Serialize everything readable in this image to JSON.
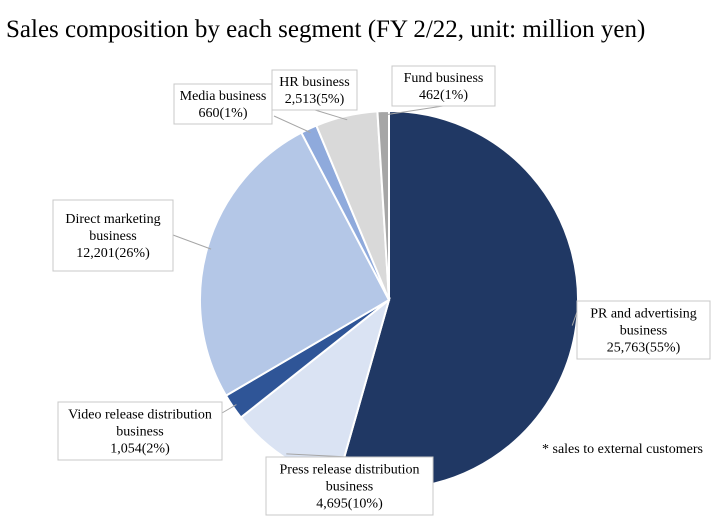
{
  "chart_data": {
    "type": "pie",
    "title": "Sales composition by each segment (FY 2/22, unit: million yen)",
    "note": "* sales to external customers",
    "start_angle_deg": 0,
    "direction": "clockwise",
    "slices": [
      {
        "label_lines": [
          "PR and advertising",
          "business",
          "25,763(55%)"
        ],
        "value": 25763,
        "percent": 55,
        "color": "#203864"
      },
      {
        "label_lines": [
          "Press release distribution",
          "business",
          "4,695(10%)"
        ],
        "value": 4695,
        "percent": 10,
        "color": "#dae3f3"
      },
      {
        "label_lines": [
          "Video release distribution",
          "business",
          "1,054(2%)"
        ],
        "value": 1054,
        "percent": 2,
        "color": "#2f5597"
      },
      {
        "label_lines": [
          "Direct marketing",
          "business",
          "12,201(26%)"
        ],
        "value": 12201,
        "percent": 26,
        "color": "#b4c7e7"
      },
      {
        "label_lines": [
          "Media business",
          "660(1%)"
        ],
        "value": 660,
        "percent": 1,
        "color": "#8faadc"
      },
      {
        "label_lines": [
          "HR business",
          "2,513(5%)"
        ],
        "value": 2513,
        "percent": 5,
        "color": "#d9d9d9"
      },
      {
        "label_lines": [
          "Fund business",
          "462(1%)"
        ],
        "value": 462,
        "percent": 1,
        "color": "#a6a6a6"
      }
    ]
  }
}
